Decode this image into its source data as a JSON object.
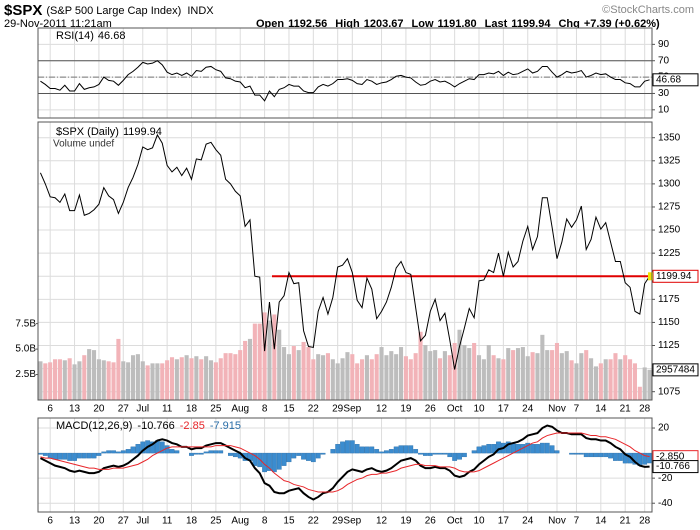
{
  "header": {
    "symbol": "$SPX",
    "name": "(S&P 500 Large Cap Index)",
    "exchange": "INDX",
    "timestamp": "29-Nov-2011 11:21am",
    "quote": [
      {
        "label": "Open",
        "value": "1192.56"
      },
      {
        "label": "High",
        "value": "1203.67"
      },
      {
        "label": "Low",
        "value": "1191.80"
      },
      {
        "label": "Last",
        "value": "1199.94"
      },
      {
        "label": "Chg",
        "value": "+7.39 (+0.62%)"
      }
    ],
    "source": "©StockCharts.com"
  },
  "chart_data": [
    {
      "type": "line",
      "title": "RSI(14)",
      "color": "#000000",
      "ylim": [
        0,
        110
      ],
      "yticks": [
        10,
        30,
        50,
        70,
        90
      ],
      "levels": [
        30,
        70
      ],
      "midline": 50,
      "grid": true,
      "values": [
        45,
        41,
        36,
        36,
        34,
        40,
        33,
        33,
        42,
        35,
        37,
        38,
        41,
        50,
        46,
        45,
        40,
        46,
        53,
        57,
        62,
        68,
        66,
        67,
        70,
        65,
        56,
        53,
        55,
        52,
        55,
        51,
        58,
        57,
        62,
        63,
        59,
        57,
        49,
        48,
        45,
        44,
        37,
        39,
        28,
        28,
        21,
        33,
        26,
        35,
        37,
        41,
        39,
        39,
        33,
        31,
        31,
        38,
        41,
        39,
        42,
        47,
        47,
        48,
        46,
        42,
        41,
        47,
        45,
        41,
        43,
        44,
        47,
        51,
        52,
        50,
        49,
        44,
        40,
        41,
        45,
        47,
        44,
        45,
        42,
        38,
        42,
        45,
        48,
        47,
        53,
        53,
        55,
        54,
        57,
        52,
        56,
        53,
        54,
        57,
        60,
        55,
        57,
        63,
        63,
        56,
        50,
        53,
        57,
        55,
        56,
        58,
        50,
        52,
        55,
        53,
        54,
        50,
        47,
        47,
        43,
        42,
        38,
        38,
        45,
        46.68
      ]
    },
    {
      "type": "line",
      "title": "$SPX (Daily)",
      "subtitle": "Volume undef",
      "color": "#000000",
      "ylim": [
        1066,
        1367
      ],
      "yticks": [
        1075,
        1100,
        1125,
        1150,
        1175,
        1200,
        1225,
        1250,
        1275,
        1300,
        1325,
        1350
      ],
      "grid": true,
      "hline": 1200,
      "hline_color": "#e00000",
      "categories": [
        null,
        null,
        "6",
        null,
        null,
        null,
        null,
        "13",
        null,
        null,
        null,
        null,
        "20",
        null,
        null,
        null,
        null,
        "27",
        null,
        null,
        null,
        "Jul",
        null,
        null,
        null,
        null,
        "11",
        null,
        null,
        null,
        null,
        "18",
        null,
        null,
        null,
        null,
        "25",
        null,
        null,
        null,
        null,
        "Aug",
        null,
        null,
        null,
        null,
        "8",
        null,
        null,
        null,
        null,
        "15",
        null,
        null,
        null,
        null,
        "22",
        null,
        null,
        null,
        null,
        "29",
        null,
        null,
        "Sep",
        null,
        null,
        null,
        null,
        null,
        "12",
        null,
        null,
        null,
        null,
        "19",
        null,
        null,
        null,
        null,
        "26",
        null,
        null,
        null,
        null,
        "Oct",
        null,
        null,
        null,
        null,
        "10",
        null,
        null,
        null,
        null,
        "17",
        null,
        null,
        null,
        null,
        "24",
        null,
        null,
        null,
        null,
        null,
        "Nov",
        null,
        null,
        null,
        "7",
        null,
        null,
        null,
        null,
        "14",
        null,
        null,
        null,
        null,
        "21",
        null,
        null,
        null,
        "28",
        null
      ],
      "values": [
        1312,
        1300,
        1286,
        1285,
        1280,
        1289,
        1271,
        1271,
        1288,
        1266,
        1268,
        1272,
        1278,
        1296,
        1287,
        1283,
        1268,
        1280,
        1296,
        1307,
        1321,
        1340,
        1337,
        1339,
        1353,
        1344,
        1320,
        1313,
        1318,
        1309,
        1317,
        1305,
        1327,
        1326,
        1343,
        1345,
        1337,
        1331,
        1305,
        1300,
        1292,
        1287,
        1254,
        1261,
        1200,
        1199,
        1119,
        1172,
        1121,
        1172,
        1179,
        1204,
        1192,
        1193,
        1141,
        1124,
        1123,
        1162,
        1177,
        1159,
        1177,
        1210,
        1212,
        1219,
        1204,
        1174,
        1166,
        1198,
        1186,
        1154,
        1162,
        1172,
        1188,
        1209,
        1216,
        1204,
        1202,
        1166,
        1130,
        1136,
        1162,
        1175,
        1152,
        1160,
        1131,
        1099,
        1124,
        1144,
        1165,
        1155,
        1195,
        1196,
        1207,
        1204,
        1225,
        1200,
        1226,
        1210,
        1216,
        1238,
        1254,
        1229,
        1243,
        1285,
        1285,
        1253,
        1219,
        1237,
        1262,
        1253,
        1261,
        1276,
        1229,
        1240,
        1264,
        1251,
        1258,
        1237,
        1216,
        1216,
        1193,
        1188,
        1162,
        1159,
        1192,
        1199.94
      ],
      "volume": {
        "up_color": "#bdbdbd",
        "down_color": "#f2b3b8",
        "ylim": [
          0,
          27.3
        ],
        "yticks": [
          {
            "value": 2.5,
            "label": "2.5B"
          },
          {
            "value": 5,
            "label": "5.0B"
          },
          {
            "value": 7.5,
            "label": "7.5B"
          }
        ],
        "last_label": "2957484",
        "values": [
          3.8,
          3.6,
          3.7,
          4.0,
          4.0,
          3.9,
          4.1,
          3.5,
          3.8,
          4.4,
          5.0,
          4.9,
          4.0,
          3.9,
          3.8,
          3.7,
          6.0,
          3.8,
          3.7,
          4.4,
          4.5,
          3.8,
          3.4,
          3.6,
          3.6,
          3.6,
          3.9,
          4.2,
          4.0,
          4.2,
          4.4,
          4.1,
          4.3,
          4.0,
          4.3,
          3.9,
          3.7,
          4.1,
          4.6,
          4.6,
          4.5,
          4.9,
          5.8,
          6.0,
          7.5,
          7.5,
          8.6,
          7.8,
          8.4,
          6.9,
          5.2,
          4.5,
          5.3,
          4.9,
          5.7,
          5.2,
          4.0,
          4.5,
          4.4,
          4.6,
          4.0,
          3.6,
          4.1,
          4.7,
          4.5,
          3.6,
          4.0,
          4.4,
          4.0,
          4.5,
          5.2,
          4.4,
          4.8,
          4.5,
          5.2,
          4.3,
          4.0,
          4.6,
          6.7,
          5.4,
          4.8,
          4.9,
          4.1,
          4.8,
          4.4,
          5.6,
          6.9,
          5.4,
          5.1,
          5.6,
          4.4,
          4.0,
          5.4,
          4.4,
          4.1,
          4.0,
          5.1,
          4.9,
          5.1,
          5.2,
          4.3,
          4.7,
          4.6,
          6.4,
          4.9,
          4.9,
          5.6,
          4.6,
          4.8,
          3.9,
          3.6,
          4.6,
          4.9,
          4.1,
          3.3,
          3.6,
          4.0,
          4.0,
          4.6,
          4.0,
          4.4,
          4.0,
          3.6,
          1.3,
          3.2,
          2.96
        ]
      }
    },
    {
      "type": "line",
      "title": "MACD(12,26,9)",
      "ylim": [
        -47,
        28
      ],
      "yticks": [
        -40,
        -20,
        20
      ],
      "grid": true,
      "series": [
        {
          "color": "#000000",
          "values": [
            -4,
            -6,
            -8,
            -10,
            -11,
            -12,
            -14,
            -15,
            -14,
            -15,
            -16,
            -16,
            -15,
            -12,
            -11,
            -10,
            -11,
            -10,
            -8,
            -5,
            -2,
            2,
            5,
            7,
            10,
            11,
            10,
            8,
            7,
            5,
            5,
            3,
            4,
            4,
            6,
            7,
            8,
            8,
            6,
            4,
            2,
            0,
            -4,
            -6,
            -12,
            -16,
            -24,
            -26,
            -31,
            -32,
            -32,
            -30,
            -29,
            -28,
            -32,
            -35,
            -37,
            -35,
            -32,
            -31,
            -28,
            -23,
            -19,
            -15,
            -13,
            -14,
            -15,
            -13,
            -12,
            -14,
            -15,
            -14,
            -12,
            -9,
            -6,
            -5,
            -4,
            -6,
            -10,
            -12,
            -12,
            -11,
            -12,
            -12,
            -14,
            -18,
            -19,
            -18,
            -15,
            -13,
            -9,
            -6,
            -3,
            -1,
            3,
            4,
            7,
            8,
            9,
            11,
            14,
            15,
            16,
            20,
            22,
            21,
            18,
            16,
            16,
            15,
            15,
            15,
            12,
            11,
            11,
            10,
            10,
            8,
            5,
            3,
            -1,
            -3,
            -7,
            -10,
            -11,
            -10.766
          ]
        },
        {
          "color": "#e8262a",
          "last_label": "-2.850",
          "values": [
            -3,
            -4,
            -4,
            -5,
            -6,
            -7,
            -8,
            -9,
            -10,
            -11,
            -12,
            -12,
            -13,
            -13,
            -13,
            -12,
            -12,
            -12,
            -11,
            -10,
            -9,
            -7,
            -5,
            -2,
            0,
            2,
            4,
            5,
            5,
            5,
            5,
            5,
            5,
            5,
            5,
            5,
            6,
            6,
            6,
            6,
            5,
            4,
            2,
            0,
            -2,
            -5,
            -9,
            -12,
            -16,
            -19,
            -22,
            -23,
            -25,
            -26,
            -27,
            -29,
            -30,
            -31,
            -31,
            -31,
            -31,
            -30,
            -28,
            -25,
            -23,
            -21,
            -20,
            -18,
            -17,
            -17,
            -16,
            -16,
            -15,
            -14,
            -12,
            -11,
            -10,
            -9,
            -9,
            -10,
            -10,
            -10,
            -11,
            -11,
            -11,
            -12,
            -14,
            -15,
            -15,
            -15,
            -14,
            -12,
            -10,
            -8,
            -6,
            -4,
            -2,
            0,
            2,
            4,
            6,
            8,
            9,
            12,
            14,
            15,
            16,
            16,
            16,
            16,
            16,
            16,
            15,
            14,
            14,
            13,
            13,
            12,
            11,
            9,
            7,
            5,
            2,
            0,
            -2,
            -2.85
          ]
        },
        {
          "type": "bar",
          "color": "#3b8ccf",
          "values": [
            -1,
            -2,
            -4,
            -5,
            -5,
            -5,
            -6,
            -6,
            -4,
            -4,
            -4,
            -4,
            -2,
            1,
            2,
            2,
            1,
            2,
            3,
            5,
            7,
            9,
            10,
            9,
            10,
            9,
            6,
            3,
            2,
            0,
            0,
            -2,
            -1,
            -1,
            1,
            2,
            2,
            2,
            0,
            -2,
            -3,
            -4,
            -6,
            -6,
            -10,
            -11,
            -15,
            -14,
            -15,
            -13,
            -10,
            -7,
            -4,
            -2,
            -5,
            -6,
            -7,
            -4,
            -1,
            0,
            3,
            7,
            9,
            10,
            10,
            7,
            5,
            5,
            5,
            3,
            1,
            2,
            3,
            5,
            6,
            6,
            6,
            3,
            -1,
            -2,
            -2,
            -1,
            -1,
            -1,
            -3,
            -6,
            -5,
            -3,
            0,
            2,
            5,
            6,
            7,
            7,
            9,
            8,
            9,
            8,
            7,
            7,
            8,
            7,
            7,
            8,
            8,
            6,
            2,
            0,
            0,
            -1,
            -1,
            -1,
            -3,
            -3,
            -3,
            -3,
            -3,
            -4,
            -6,
            -6,
            -8,
            -8,
            -9,
            -10,
            -9,
            -7.915
          ]
        }
      ]
    }
  ]
}
